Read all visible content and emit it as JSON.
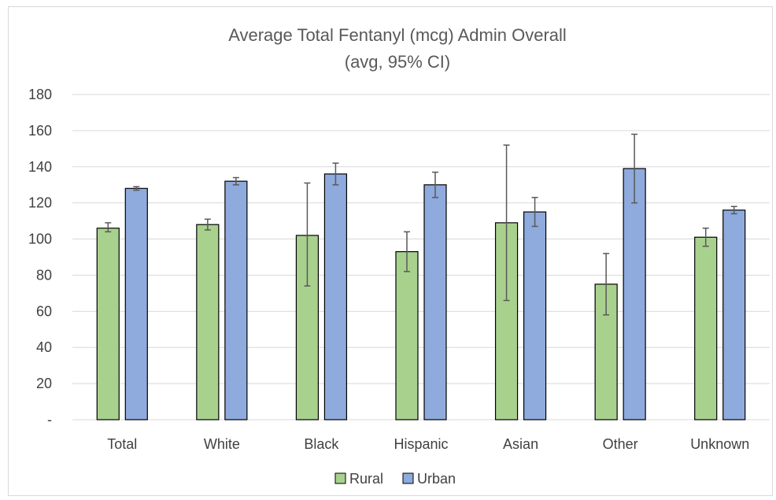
{
  "chart_data": {
    "type": "bar",
    "title": "Average Total Fentanyl (mcg) Admin Overall",
    "subtitle": "(avg, 95% CI)",
    "xlabel": "",
    "ylabel": "",
    "ylim": [
      0,
      180
    ],
    "yticks": [
      {
        "value": 0,
        "label": "-"
      },
      {
        "value": 20,
        "label": "20"
      },
      {
        "value": 40,
        "label": "40"
      },
      {
        "value": 60,
        "label": "60"
      },
      {
        "value": 80,
        "label": "80"
      },
      {
        "value": 100,
        "label": "100"
      },
      {
        "value": 120,
        "label": "120"
      },
      {
        "value": 140,
        "label": "140"
      },
      {
        "value": 160,
        "label": "160"
      },
      {
        "value": 180,
        "label": "180"
      }
    ],
    "grid": true,
    "legend_position": "bottom",
    "categories": [
      "Total",
      "White",
      "Black",
      "Hispanic",
      "Asian",
      "Other",
      "Unknown"
    ],
    "series": [
      {
        "name": "Rural",
        "color": "#a9d18e",
        "values": [
          106,
          108,
          102,
          93,
          109,
          75,
          101
        ],
        "ci_low": [
          104,
          105,
          74,
          82,
          66,
          58,
          96
        ],
        "ci_high": [
          109,
          111,
          131,
          104,
          152,
          92,
          106
        ]
      },
      {
        "name": "Urban",
        "color": "#8faadc",
        "values": [
          128,
          132,
          136,
          130,
          115,
          139,
          116
        ],
        "ci_low": [
          127,
          130,
          130,
          123,
          107,
          120,
          114
        ],
        "ci_high": [
          129,
          134,
          142,
          137,
          123,
          158,
          118
        ]
      }
    ]
  }
}
